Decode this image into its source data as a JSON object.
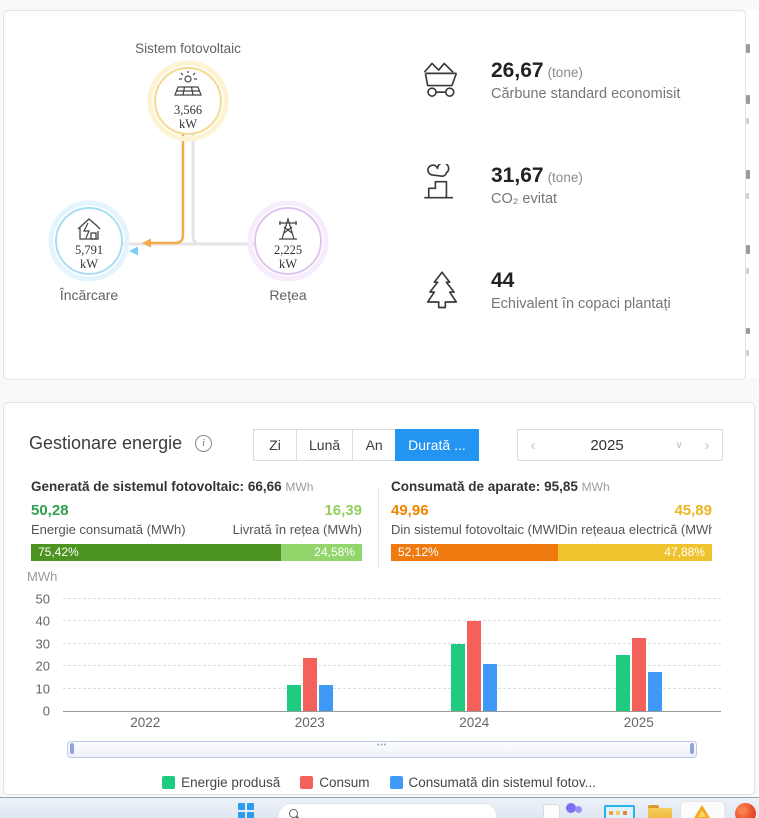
{
  "flow": {
    "title": "Sistem fotovoltaic",
    "pv": {
      "value": "3,566",
      "unit": "kW"
    },
    "load": {
      "value": "5,791",
      "unit": "kW",
      "label": "Încărcare"
    },
    "grid": {
      "value": "2,225",
      "unit": "kW",
      "label": "Rețea"
    }
  },
  "environment": [
    {
      "value": "26,67",
      "unit": "(tone)",
      "label": "Cărbune standard economisit"
    },
    {
      "value": "31,67",
      "unit": "(tone)",
      "label": "CO₂ evitat"
    },
    {
      "value": "44",
      "unit": "",
      "label": "Echivalent în copaci plantați"
    }
  ],
  "energy": {
    "title": "Gestionare energie",
    "info_icon": "i",
    "tabs": [
      {
        "label": "Zi"
      },
      {
        "label": "Lună"
      },
      {
        "label": "An"
      },
      {
        "label": "Durată ..."
      }
    ],
    "active_tab": "Durată ...",
    "year": "2025",
    "generated": {
      "title": "Generată de sistemul fotovoltaic:",
      "total": "66,66",
      "unit": "MWh",
      "segments": [
        {
          "value": "50,28",
          "label": "Energie consumată (MWh)",
          "percent_label": "75,42%",
          "percent": 75.42,
          "value_color": "#2fa04e",
          "bar_color": "#4d9322"
        },
        {
          "value": "16,39",
          "label": "Livrată în rețea (MWh)",
          "percent_label": "24,58%",
          "percent": 24.58,
          "value_color": "#93d05c",
          "bar_color": "#92d56b"
        }
      ]
    },
    "consumed": {
      "title": "Consumată de aparate:",
      "total": "95,85",
      "unit": "MWh",
      "segments": [
        {
          "value": "49,96",
          "label": "Din sistemul fotovoltaic (MWh)",
          "percent_label": "52,12%",
          "percent": 52.12,
          "value_color": "#f08300",
          "bar_color": "#ee7a10"
        },
        {
          "value": "45,89",
          "label": "Din rețeaua electrică (MWh)",
          "percent_label": "47,88%",
          "percent": 47.88,
          "value_color": "#ebb51f",
          "bar_color": "#eec32e"
        }
      ]
    }
  },
  "chart_data": {
    "type": "bar",
    "categories": [
      "2022",
      "2023",
      "2024",
      "2025"
    ],
    "series": [
      {
        "name": "Energie produsă",
        "color": "#1fcb80",
        "values": [
          0,
          11.5,
          30,
          25.2
        ]
      },
      {
        "name": "Consum",
        "color": "#f4615b",
        "values": [
          0,
          23.5,
          40,
          32.4
        ]
      },
      {
        "name": "Consumată din sistemul fotov...",
        "color": "#3e9af6",
        "values": [
          0,
          11.5,
          21,
          17.5
        ]
      }
    ],
    "ylabel": "MWh",
    "ylim": [
      0,
      50
    ],
    "ytick_step": 10,
    "grid": "horizontal-dashed",
    "legend_position": "bottom"
  }
}
